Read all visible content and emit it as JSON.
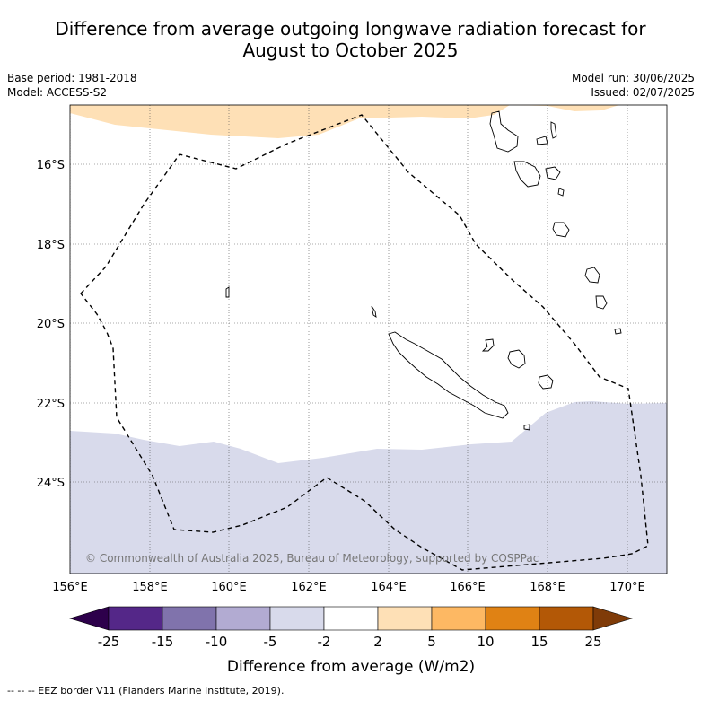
{
  "title_line1": "Difference from average outgoing longwave radiation forecast for",
  "title_line2": "August to October 2025",
  "meta": {
    "base_period": "Base period: 1981-2018",
    "model": "Model: ACCESS-S2",
    "model_run": "Model run: 30/06/2025",
    "issued": "Issued: 02/07/2025"
  },
  "map": {
    "copyright": "© Commonwealth of Australia 2025, Bureau of Meteorology, supported by COSPPac",
    "lat_labels": [
      "16°S",
      "18°S",
      "20°S",
      "22°S",
      "24°S"
    ],
    "lon_labels": [
      "156°E",
      "158°E",
      "160°E",
      "162°E",
      "164°E",
      "166°E",
      "168°E",
      "170°E"
    ],
    "colors": {
      "above_2_5": "#fee0b6",
      "below_m5_m2": "#d8daeb",
      "coast": "#000000",
      "eez": "#000000"
    }
  },
  "colorbar": {
    "title": "Difference from average (W/m2)",
    "tick_labels": [
      "-25",
      "-15",
      "-10",
      "-5",
      "-2",
      "2",
      "5",
      "10",
      "15",
      "25"
    ],
    "colors": [
      "#2d004b",
      "#542788",
      "#8073ac",
      "#b2abd2",
      "#d8daeb",
      "#ffffff",
      "#fee0b6",
      "#fdb863",
      "#e08214",
      "#b35806",
      "#7f3b08"
    ]
  },
  "footer": "--  --  -- EEZ border V11 (Flanders Marine Institute, 2019)."
}
